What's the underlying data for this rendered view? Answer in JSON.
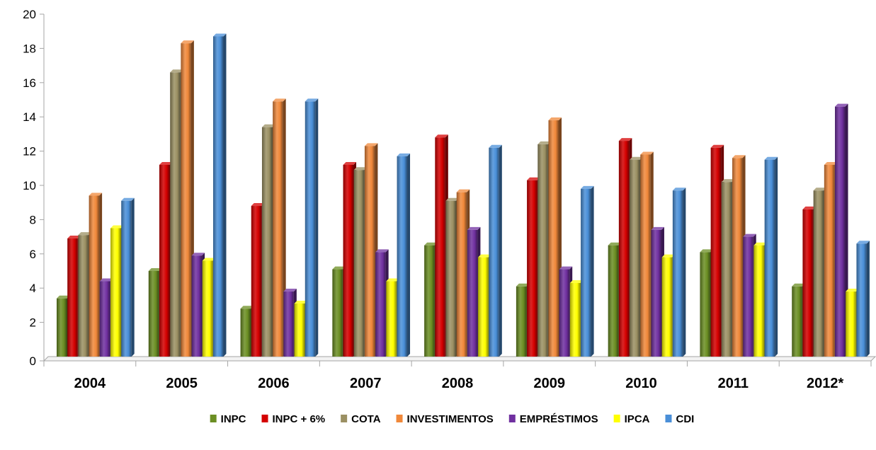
{
  "chart_data": {
    "type": "bar",
    "title": "",
    "xlabel": "",
    "ylabel": "",
    "ylim": [
      0,
      20
    ],
    "yticks": [
      0,
      2,
      4,
      6,
      8,
      10,
      12,
      14,
      16,
      18,
      20
    ],
    "grid": false,
    "legend_position": "bottom",
    "categories": [
      "2004",
      "2005",
      "2006",
      "2007",
      "2008",
      "2009",
      "2010",
      "2011",
      "2012*"
    ],
    "series": [
      {
        "name": "INPC",
        "color": "#6b8e23",
        "values": [
          3.4,
          5.0,
          2.8,
          5.1,
          6.5,
          4.1,
          6.5,
          6.1,
          4.1
        ]
      },
      {
        "name": "INPC + 6%",
        "color": "#d40000",
        "values": [
          6.9,
          11.2,
          8.8,
          11.2,
          12.8,
          10.3,
          12.6,
          12.2,
          8.6
        ]
      },
      {
        "name": "COTA",
        "color": "#9b9063",
        "values": [
          7.1,
          16.6,
          13.4,
          10.9,
          9.1,
          12.4,
          11.5,
          10.2,
          9.7
        ]
      },
      {
        "name": "INVESTIMENTOS",
        "color": "#f0883a",
        "values": [
          9.4,
          18.3,
          14.9,
          12.3,
          9.6,
          13.8,
          11.8,
          11.6,
          11.2
        ]
      },
      {
        "name": "EMPRÉSTIMOS",
        "color": "#7030a0",
        "values": [
          4.4,
          5.9,
          3.8,
          6.1,
          7.4,
          5.1,
          7.4,
          7.0,
          14.6
        ]
      },
      {
        "name": "IPCA",
        "color": "#ffff00",
        "values": [
          7.5,
          5.6,
          3.1,
          4.4,
          5.8,
          4.3,
          5.8,
          6.5,
          3.8
        ]
      },
      {
        "name": "CDI",
        "color": "#4a8fd8",
        "values": [
          9.1,
          18.7,
          14.9,
          11.7,
          12.2,
          9.8,
          9.7,
          11.5,
          6.6
        ]
      }
    ]
  }
}
